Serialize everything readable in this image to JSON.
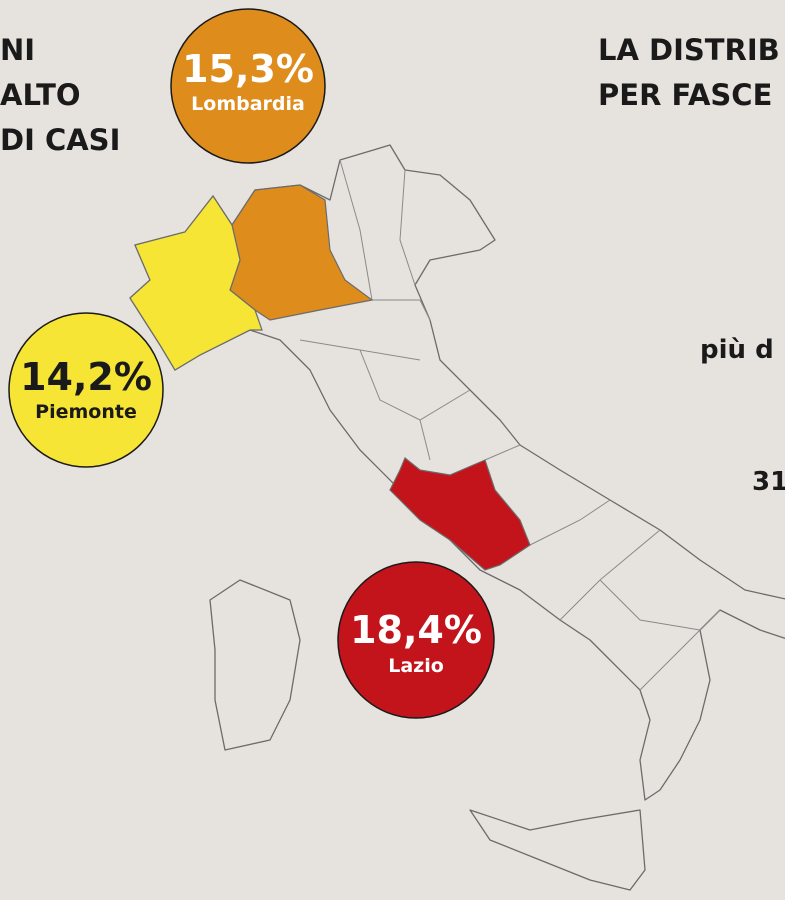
{
  "left_heading": [
    "NI",
    "ALTO",
    "DI CASI"
  ],
  "right_heading": [
    "LA DISTRIB",
    "PER FASCE"
  ],
  "side_texts": [
    "più d",
    "31"
  ],
  "regions": [
    {
      "name": "Lombardia",
      "share": "15,3%",
      "color": "#de8c1c",
      "text_color": "#ffffff"
    },
    {
      "name": "Piemonte",
      "share": "14,2%",
      "color": "#f6e535",
      "text_color": "#1a1a1a"
    },
    {
      "name": "Lazio",
      "share": "18,4%",
      "color": "#c3141c",
      "text_color": "#ffffff"
    }
  ]
}
